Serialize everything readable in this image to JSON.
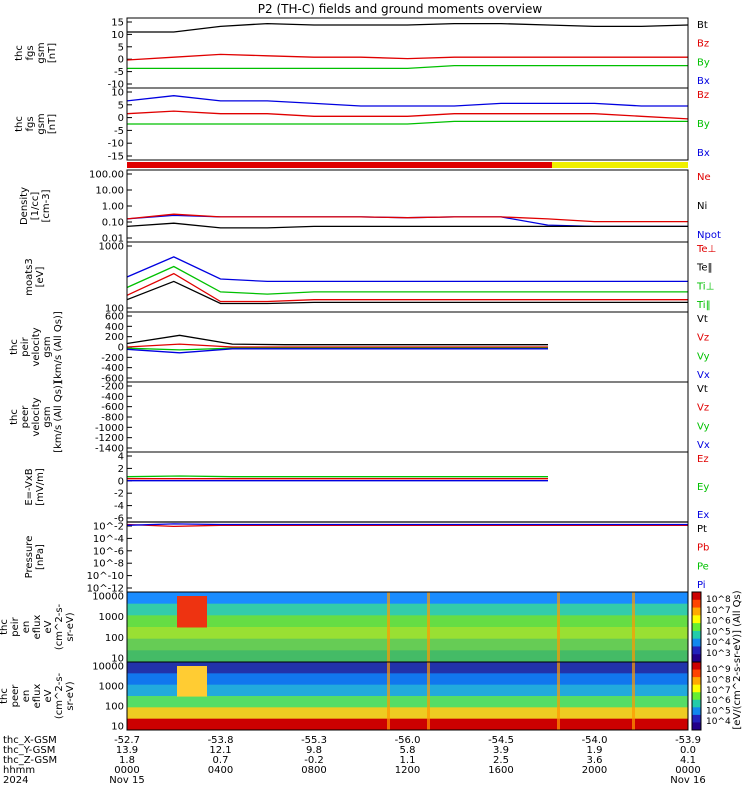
{
  "title": "P2 (TH-C) fields and ground moments overview",
  "colors": {
    "black": "#000000",
    "red": "#e00000",
    "green": "#00c000",
    "blue": "#0000e0",
    "yellow": "#f0f000"
  },
  "chart_data": [
    {
      "type": "line",
      "ylabel": [
        "thc",
        "fgs",
        "gsm",
        "[nT]"
      ],
      "yticks": [
        "15",
        "10",
        "5",
        "0",
        "-5",
        "-10"
      ],
      "legend": [
        {
          "label": "Bt",
          "color": "#000000"
        },
        {
          "label": "Bz",
          "color": "#e00000"
        },
        {
          "label": "By",
          "color": "#00c000"
        },
        {
          "label": "Bx",
          "color": "#0000e0"
        }
      ],
      "ylim": [
        -10,
        15
      ],
      "series": [
        {
          "label": "Bt",
          "color": "#000000",
          "values": [
            10,
            10,
            12,
            13,
            12.5,
            12.5,
            12.5,
            13,
            13,
            12.5,
            12,
            12,
            12.5
          ]
        },
        {
          "label": "Bz",
          "color": "#e00000",
          "values": [
            0,
            1,
            2,
            1.5,
            1,
            1,
            0.5,
            1,
            1,
            1,
            1,
            1,
            1
          ]
        },
        {
          "label": "By",
          "color": "#00c000",
          "values": [
            -3,
            -3,
            -3,
            -3,
            -3,
            -3,
            -3,
            -2,
            -2,
            -2,
            -2,
            -2,
            -2
          ]
        }
      ]
    },
    {
      "type": "line",
      "ylabel": [
        "thc",
        "fgs",
        "gsm",
        "[nT]"
      ],
      "yticks": [
        "10",
        "5",
        "0",
        "-5",
        "-10",
        "-15"
      ],
      "legend": [
        {
          "label": "Bz",
          "color": "#e00000"
        },
        {
          "label": "By",
          "color": "#00c000"
        },
        {
          "label": "Bx",
          "color": "#0000e0"
        }
      ],
      "ylim": [
        -17,
        11
      ],
      "series": [
        {
          "label": "Bx",
          "color": "#0000e0",
          "values": [
            6,
            8,
            6,
            6,
            5,
            4,
            4,
            4,
            5,
            5,
            5,
            4,
            4
          ]
        },
        {
          "label": "Bz",
          "color": "#e00000",
          "values": [
            1,
            2,
            1,
            1,
            0,
            0,
            0,
            1,
            1,
            1,
            1,
            0,
            -1
          ]
        },
        {
          "label": "By",
          "color": "#00c000",
          "values": [
            -3,
            -3,
            -3,
            -3,
            -3,
            -3,
            -3,
            -2,
            -2,
            -2,
            -2,
            -2,
            -2
          ]
        }
      ]
    },
    {
      "type": "line",
      "ylabel": [
        "Density",
        "[1/cc]",
        "[cm-3]"
      ],
      "yticks": [
        "100.00",
        "10.00",
        "1.00",
        "0.10",
        "0.01"
      ],
      "legend": [
        {
          "label": "Ne",
          "color": "#e00000"
        },
        {
          "label": "Ni",
          "color": "#000000"
        },
        {
          "label": "Npot",
          "color": "#0000e0"
        }
      ],
      "ylim": [
        0.005,
        200
      ],
      "series": [
        {
          "label": "Npot",
          "color": "#0000e0",
          "values": [
            0.15,
            0.25,
            0.2,
            0.2,
            0.2,
            0.2,
            0.18,
            0.2,
            0.2,
            0.06,
            0.05,
            0.05,
            0.05
          ]
        },
        {
          "label": "Ne",
          "color": "#e00000",
          "values": [
            0.15,
            0.3,
            0.2,
            0.2,
            0.2,
            0.2,
            0.18,
            0.2,
            0.2,
            0.15,
            0.1,
            0.1,
            0.1
          ]
        },
        {
          "label": "Ni",
          "color": "#000000",
          "values": [
            0.05,
            0.08,
            0.04,
            0.04,
            0.05,
            0.05,
            0.05,
            0.05,
            0.05,
            0.05,
            0.05,
            0.05,
            0.05
          ]
        }
      ]
    },
    {
      "type": "line",
      "ylabel": [
        "moats3",
        "[eV]"
      ],
      "yticks": [
        "1000",
        "100"
      ],
      "legend": [
        {
          "label": "Te⊥",
          "color": "#e00000"
        },
        {
          "label": "Te‖",
          "color": "#000000"
        },
        {
          "label": "Ti⊥",
          "color": "#00c000"
        },
        {
          "label": "Ti‖",
          "color": "#00c000"
        }
      ],
      "ylim": [
        40,
        4000
      ],
      "series": [
        {
          "label": "Ti",
          "color": "#0000e0",
          "values": [
            400,
            1500,
            350,
            300,
            300,
            300,
            300,
            300,
            300,
            300,
            300,
            300,
            300
          ]
        },
        {
          "label": "Ti⊥",
          "color": "#00c000",
          "values": [
            200,
            800,
            150,
            130,
            150,
            150,
            150,
            150,
            150,
            150,
            150,
            150,
            150
          ]
        },
        {
          "label": "Te⊥",
          "color": "#e00000",
          "values": [
            120,
            500,
            80,
            80,
            90,
            90,
            90,
            90,
            90,
            90,
            90,
            90,
            90
          ]
        },
        {
          "label": "Te‖",
          "color": "#000000",
          "values": [
            90,
            300,
            70,
            70,
            75,
            75,
            75,
            75,
            75,
            75,
            75,
            75,
            75
          ]
        }
      ]
    },
    {
      "type": "line",
      "ylabel": [
        "thc",
        "peir",
        "velocity",
        "gsm",
        "[km/s (All Qs)]"
      ],
      "yticks": [
        "600",
        "400",
        "200",
        "0",
        "-200",
        "-400",
        "-600"
      ],
      "legend": [
        {
          "label": "Vt",
          "color": "#000000"
        },
        {
          "label": "Vz",
          "color": "#e00000"
        },
        {
          "label": "Vy",
          "color": "#00c000"
        },
        {
          "label": "Vx",
          "color": "#0000e0"
        }
      ],
      "ylim": [
        -600,
        600
      ],
      "series": [
        {
          "label": "Vt",
          "color": "#000000",
          "values": [
            60,
            200,
            50,
            40,
            40,
            40,
            40,
            40,
            40
          ]
        },
        {
          "label": "Vz",
          "color": "#e00000",
          "values": [
            0,
            50,
            0,
            0,
            0,
            0,
            0,
            0,
            0
          ]
        },
        {
          "label": "Vy",
          "color": "#00c000",
          "values": [
            -20,
            -50,
            -20,
            -20,
            -20,
            -20,
            -20,
            -20,
            -20
          ]
        },
        {
          "label": "Vx",
          "color": "#0000e0",
          "values": [
            -40,
            -100,
            -30,
            -30,
            -30,
            -30,
            -30,
            -30,
            -30
          ]
        }
      ]
    },
    {
      "type": "line",
      "ylabel": [
        "thc",
        "peer",
        "velocity",
        "gsm",
        "[km/s (All Qs)]"
      ],
      "yticks": [
        "-200",
        "-400",
        "-600",
        "-800",
        "-1000",
        "-1200",
        "-1400"
      ],
      "legend": [
        {
          "label": "Vt",
          "color": "#000000"
        },
        {
          "label": "Vz",
          "color": "#e00000"
        },
        {
          "label": "Vy",
          "color": "#00c000"
        },
        {
          "label": "Vx",
          "color": "#0000e0"
        }
      ],
      "ylim": [
        -1400,
        -100
      ],
      "series": []
    },
    {
      "type": "line",
      "ylabel": [
        "E=-VxB",
        "[mV/m]"
      ],
      "yticks": [
        "4",
        "2",
        "0",
        "-2",
        "-4",
        "-6"
      ],
      "legend": [
        {
          "label": "Ez",
          "color": "#e00000"
        },
        {
          "label": "Ey",
          "color": "#00c000"
        },
        {
          "label": "Ex",
          "color": "#0000e0"
        }
      ],
      "ylim": [
        -6,
        4.5
      ],
      "series": [
        {
          "label": "Ez",
          "color": "#e00000",
          "values": [
            0.5,
            0.5,
            0.5,
            0.5,
            0.5,
            0.5,
            0.5,
            0.5,
            0.5
          ]
        },
        {
          "label": "Ey",
          "color": "#00c000",
          "values": [
            0.8,
            0.9,
            0.8,
            0.8,
            0.8,
            0.8,
            0.8,
            0.8,
            0.8
          ]
        },
        {
          "label": "Ex",
          "color": "#0000e0",
          "values": [
            0.2,
            0.2,
            0.2,
            0.2,
            0.2,
            0.2,
            0.2,
            0.2,
            0.2
          ]
        }
      ]
    },
    {
      "type": "line",
      "ylabel": [
        "Pressure",
        "[nPa]"
      ],
      "yticks": [
        "10^-2",
        "10^-4",
        "10^-6",
        "10^-8",
        "10^-10",
        "10^-12"
      ],
      "legend": [
        {
          "label": "Pt",
          "color": "#000000"
        },
        {
          "label": "Pb",
          "color": "#e00000"
        },
        {
          "label": "Pe",
          "color": "#00c000"
        },
        {
          "label": "Pi",
          "color": "#0000e0"
        }
      ],
      "ylim": [
        1e-13,
        0.01
      ],
      "series": [
        {
          "label": "Pt",
          "color": "#000000",
          "values": [
            0.01,
            0.012,
            0.01,
            0.01,
            0.01,
            0.01,
            0.01,
            0.01,
            0.01,
            0.01,
            0.01,
            0.01,
            0.01
          ]
        },
        {
          "label": "Pb",
          "color": "#e00000",
          "values": [
            0.004,
            0.002,
            0.003,
            0.003,
            0.003,
            0.003,
            0.003,
            0.003,
            0.003,
            0.003,
            0.003,
            0.003,
            0.003
          ]
        },
        {
          "label": "Pi",
          "color": "#0000e0",
          "values": [
            0.003,
            0.005,
            0.004,
            0.004,
            0.004,
            0.004,
            0.004,
            0.004,
            0.004,
            0.004,
            0.004,
            0.004,
            0.004
          ]
        }
      ]
    },
    {
      "type": "heatmap",
      "ylabel": [
        "thc",
        "peir",
        "en",
        "eflux",
        "eV",
        "(cm^2-s-",
        "sr-eV)"
      ],
      "yticks": [
        "10000",
        "1000",
        "100",
        "10"
      ],
      "colorbar_ticks": [
        "10^8",
        "10^7",
        "10^6",
        "10^5",
        "10^4",
        "10^3"
      ]
    },
    {
      "type": "heatmap",
      "ylabel": [
        "thc",
        "peer",
        "en",
        "eflux",
        "eV",
        "(cm^2-s-",
        "sr-eV)"
      ],
      "yticks": [
        "10000",
        "1000",
        "100",
        "10"
      ],
      "colorbar_ticks": [
        "10^9",
        "10^8",
        "10^7",
        "10^6",
        "10^5",
        "10^4"
      ]
    }
  ],
  "colorbar_label": "[eV/(cm^2-s-sr-eV)] (All Qs)",
  "xaxis": {
    "ticks": [
      "0000",
      "0400",
      "0800",
      "1200",
      "1600",
      "2000",
      "0000"
    ],
    "row_labels": [
      "thc_X-GSM",
      "thc_Y-GSM",
      "thc_Z-GSM",
      "hhmm",
      "2024"
    ],
    "x_gsm": [
      "-52.7",
      "-53.8",
      "-55.3",
      "-56.0",
      "-54.5",
      "-54.0",
      "-53.9"
    ],
    "y_gsm": [
      "13.9",
      "12.1",
      "9.8",
      "5.8",
      "3.9",
      "1.9",
      "0.0"
    ],
    "z_gsm": [
      "1.8",
      "0.7",
      "-0.2",
      "1.1",
      "2.5",
      "3.6",
      "4.1"
    ],
    "dates": [
      "Nov 15",
      "Nov 16"
    ]
  }
}
